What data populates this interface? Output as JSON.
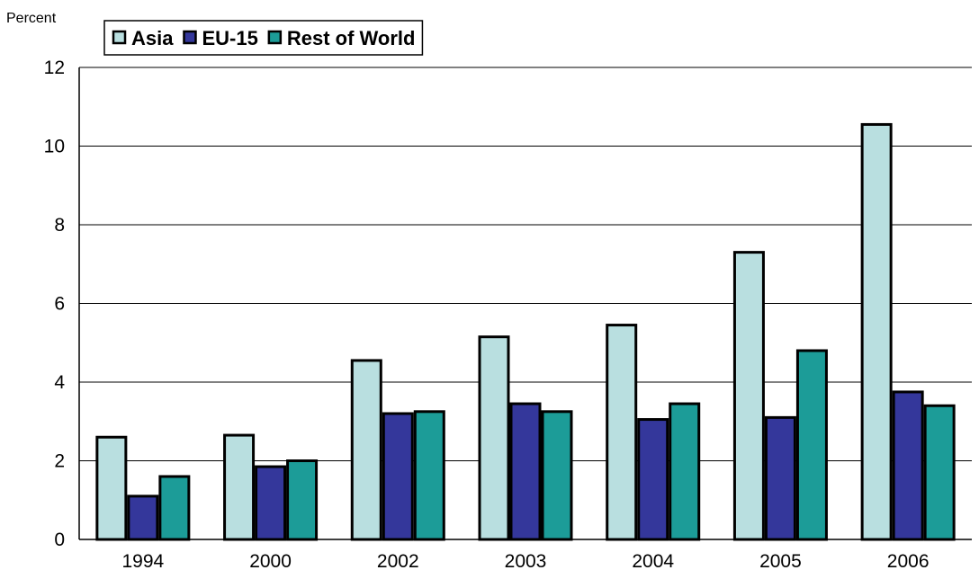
{
  "chart_data": {
    "type": "bar",
    "ylabel": "Percent",
    "ylim": [
      0,
      12
    ],
    "yticks": [
      0,
      2,
      4,
      6,
      8,
      10,
      12
    ],
    "grid": true,
    "legend_position": "top-left",
    "categories": [
      "1994",
      "2000",
      "2002",
      "2003",
      "2004",
      "2005",
      "2006"
    ],
    "series": [
      {
        "name": "Asia",
        "color": "#b9dfe0",
        "values": [
          2.6,
          2.65,
          4.55,
          5.15,
          5.45,
          7.3,
          10.55
        ]
      },
      {
        "name": "EU-15",
        "color": "#34379b",
        "values": [
          1.1,
          1.85,
          3.2,
          3.45,
          3.05,
          3.1,
          3.75
        ]
      },
      {
        "name": "Rest of World",
        "color": "#1c9c98",
        "values": [
          1.6,
          2.0,
          3.25,
          3.25,
          3.45,
          4.8,
          3.4
        ]
      }
    ]
  }
}
